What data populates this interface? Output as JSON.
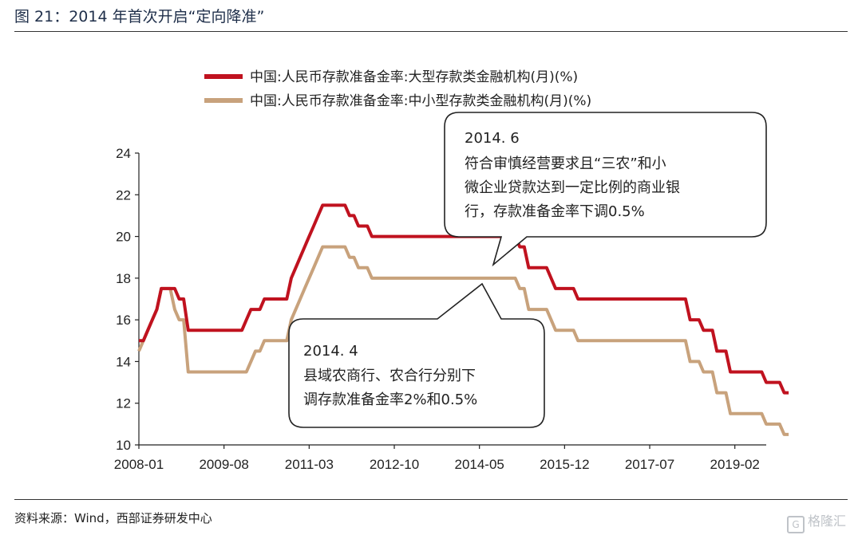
{
  "header": {
    "title": "图 21：2014 年首次开启“定向降准”"
  },
  "footer": {
    "source": "资料来源：Wind，西部证券研发中心",
    "watermark": "格隆汇",
    "watermark_icon": "g-logo-icon"
  },
  "colors": {
    "large": "#c0121f",
    "small": "#c8a27c"
  },
  "chart_data": {
    "type": "line",
    "title": "",
    "xlabel": "",
    "ylabel": "",
    "ylim": [
      10,
      24
    ],
    "yticks": [
      10,
      12,
      14,
      16,
      18,
      20,
      22,
      24
    ],
    "xtick_labels": [
      "2008-01",
      "2009-08",
      "2011-03",
      "2012-10",
      "2014-05",
      "2015-12",
      "2017-07",
      "2019-02"
    ],
    "xrange": [
      "2008-01",
      "2019-09"
    ],
    "grid": false,
    "legend_position": "top",
    "series": [
      {
        "name": "中国:人民币存款准备金率:大型存款类金融机构(月)(%)",
        "color": "#c0121f",
        "points": [
          [
            "2008-01",
            15.0
          ],
          [
            "2008-02",
            15.0
          ],
          [
            "2008-03",
            15.5
          ],
          [
            "2008-04",
            16.0
          ],
          [
            "2008-05",
            16.5
          ],
          [
            "2008-06",
            17.5
          ],
          [
            "2008-07",
            17.5
          ],
          [
            "2008-08",
            17.5
          ],
          [
            "2008-09",
            17.5
          ],
          [
            "2008-10",
            17.0
          ],
          [
            "2008-11",
            17.0
          ],
          [
            "2008-12",
            15.5
          ],
          [
            "2009-01",
            15.5
          ],
          [
            "2009-12",
            15.5
          ],
          [
            "2010-01",
            16.0
          ],
          [
            "2010-02",
            16.5
          ],
          [
            "2010-04",
            16.5
          ],
          [
            "2010-05",
            17.0
          ],
          [
            "2010-10",
            17.0
          ],
          [
            "2010-11",
            18.0
          ],
          [
            "2010-12",
            18.5
          ],
          [
            "2011-01",
            19.0
          ],
          [
            "2011-02",
            19.5
          ],
          [
            "2011-03",
            20.0
          ],
          [
            "2011-04",
            20.5
          ],
          [
            "2011-05",
            21.0
          ],
          [
            "2011-06",
            21.5
          ],
          [
            "2011-11",
            21.5
          ],
          [
            "2011-12",
            21.0
          ],
          [
            "2012-01",
            21.0
          ],
          [
            "2012-02",
            20.5
          ],
          [
            "2012-04",
            20.5
          ],
          [
            "2012-05",
            20.0
          ],
          [
            "2014-05",
            20.0
          ],
          [
            "2015-01",
            20.0
          ],
          [
            "2015-02",
            19.5
          ],
          [
            "2015-03",
            19.5
          ],
          [
            "2015-04",
            18.5
          ],
          [
            "2015-08",
            18.5
          ],
          [
            "2015-09",
            18.0
          ],
          [
            "2015-10",
            17.5
          ],
          [
            "2016-02",
            17.5
          ],
          [
            "2016-03",
            17.0
          ],
          [
            "2018-03",
            17.0
          ],
          [
            "2018-04",
            16.0
          ],
          [
            "2018-06",
            16.0
          ],
          [
            "2018-07",
            15.5
          ],
          [
            "2018-09",
            15.5
          ],
          [
            "2018-10",
            14.5
          ],
          [
            "2018-12",
            14.5
          ],
          [
            "2019-01",
            13.5
          ],
          [
            "2019-04",
            13.5
          ],
          [
            "2019-05",
            13.5
          ],
          [
            "2019-08",
            13.5
          ],
          [
            "2019-09",
            13.0
          ],
          [
            "2019-10",
            13.0
          ],
          [
            "2019-11",
            13.0
          ],
          [
            "2019-12",
            13.0
          ],
          [
            "2020-01",
            12.5
          ],
          [
            "2020-02",
            12.5
          ]
        ]
      },
      {
        "name": "中国:人民币存款准备金率:中小型存款类金融机构(月)(%)",
        "color": "#c8a27c",
        "points": [
          [
            "2008-01",
            14.5
          ],
          [
            "2008-02",
            15.0
          ],
          [
            "2008-03",
            15.5
          ],
          [
            "2008-04",
            16.0
          ],
          [
            "2008-05",
            16.5
          ],
          [
            "2008-06",
            17.5
          ],
          [
            "2008-07",
            17.5
          ],
          [
            "2008-08",
            17.5
          ],
          [
            "2008-09",
            16.5
          ],
          [
            "2008-10",
            16.0
          ],
          [
            "2008-11",
            16.0
          ],
          [
            "2008-12",
            13.5
          ],
          [
            "2009-01",
            13.5
          ],
          [
            "2010-01",
            13.5
          ],
          [
            "2010-02",
            14.0
          ],
          [
            "2010-03",
            14.5
          ],
          [
            "2010-04",
            14.5
          ],
          [
            "2010-05",
            15.0
          ],
          [
            "2010-10",
            15.0
          ],
          [
            "2010-11",
            16.0
          ],
          [
            "2010-12",
            16.5
          ],
          [
            "2011-01",
            17.0
          ],
          [
            "2011-02",
            17.5
          ],
          [
            "2011-03",
            18.0
          ],
          [
            "2011-04",
            18.5
          ],
          [
            "2011-05",
            19.0
          ],
          [
            "2011-06",
            19.5
          ],
          [
            "2011-11",
            19.5
          ],
          [
            "2011-12",
            19.0
          ],
          [
            "2012-01",
            19.0
          ],
          [
            "2012-02",
            18.5
          ],
          [
            "2012-04",
            18.5
          ],
          [
            "2012-05",
            18.0
          ],
          [
            "2015-01",
            18.0
          ],
          [
            "2015-02",
            17.5
          ],
          [
            "2015-03",
            17.5
          ],
          [
            "2015-04",
            16.5
          ],
          [
            "2015-08",
            16.5
          ],
          [
            "2015-09",
            16.0
          ],
          [
            "2015-10",
            15.5
          ],
          [
            "2016-02",
            15.5
          ],
          [
            "2016-03",
            15.0
          ],
          [
            "2018-03",
            15.0
          ],
          [
            "2018-04",
            14.0
          ],
          [
            "2018-06",
            14.0
          ],
          [
            "2018-07",
            13.5
          ],
          [
            "2018-09",
            13.5
          ],
          [
            "2018-10",
            12.5
          ],
          [
            "2018-12",
            12.5
          ],
          [
            "2019-01",
            11.5
          ],
          [
            "2019-08",
            11.5
          ],
          [
            "2019-09",
            11.0
          ],
          [
            "2019-12",
            11.0
          ],
          [
            "2020-01",
            10.5
          ],
          [
            "2020-02",
            10.5
          ]
        ]
      }
    ],
    "annotations": [
      {
        "title": "2014. 6",
        "lines": [
          "符合审慎经营要求且“三农”和小",
          "微企业贷款达到一定比例的商业银",
          "行，存款准备金率下调0.5%"
        ],
        "points_to": [
          "2014-06",
          20.0
        ]
      },
      {
        "title": "2014. 4",
        "lines": [
          "县域农商行、农合行分别下",
          "调存款准备金率2%和0.5%"
        ],
        "points_to": [
          "2014-04",
          18.0
        ]
      }
    ]
  }
}
